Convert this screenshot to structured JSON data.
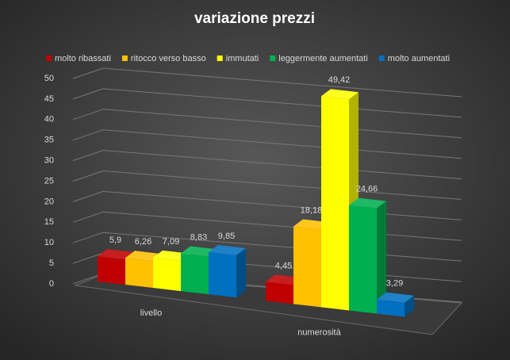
{
  "chart_data": {
    "type": "bar3d",
    "title": "variazione  prezzi",
    "categories": [
      "livello",
      "numerosità"
    ],
    "series": [
      {
        "name": "molto ribassati",
        "color": "#c00000",
        "values": [
          5.9,
          4.45
        ],
        "value_labels": [
          "5,9",
          "4,45"
        ]
      },
      {
        "name": "ritocco verso basso",
        "color": "#ffc000",
        "values": [
          6.26,
          18.18
        ],
        "value_labels": [
          "6,26",
          "18,18"
        ]
      },
      {
        "name": "immutati",
        "color": "#ffff00",
        "values": [
          7.09,
          49.42
        ],
        "value_labels": [
          "7,09",
          "49,42"
        ]
      },
      {
        "name": "leggermente aumentati",
        "color": "#00b050",
        "values": [
          8.83,
          24.66
        ],
        "value_labels": [
          "8,83",
          "24,66"
        ]
      },
      {
        "name": "molto aumentati",
        "color": "#0070c0",
        "values": [
          9.85,
          3.29
        ],
        "value_labels": [
          "9,85",
          "3,29"
        ]
      }
    ],
    "ylim": [
      0,
      50
    ],
    "yticks": [
      0,
      5,
      10,
      15,
      20,
      25,
      30,
      35,
      40,
      45,
      50
    ],
    "grid": true,
    "legend": "top"
  }
}
